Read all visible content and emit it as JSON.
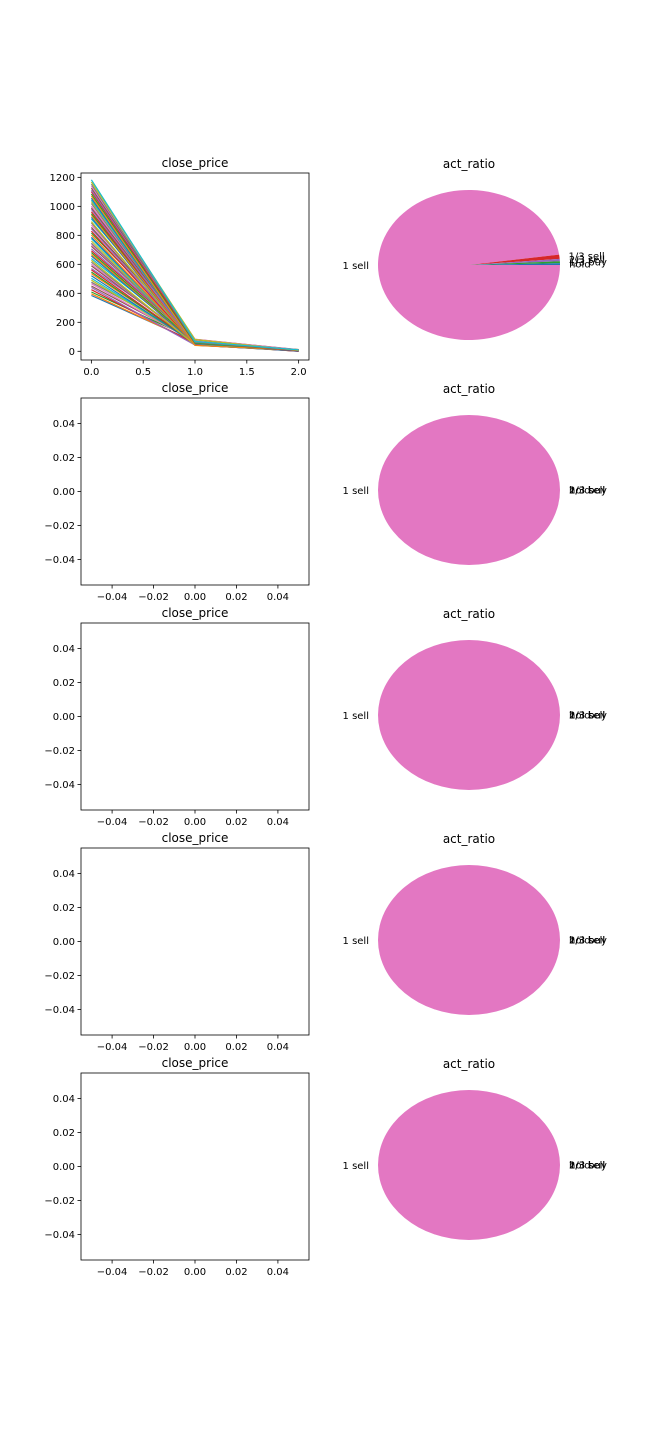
{
  "figure": {
    "rows": 5
  },
  "chart_data": [
    {
      "type": "line",
      "title": "close_price",
      "x": [
        0,
        1,
        2
      ],
      "xlim": [
        -0.1,
        2.1
      ],
      "ylim": [
        -60,
        1230
      ],
      "xticks": [
        "0.0",
        "0.5",
        "1.0",
        "1.5",
        "2.0"
      ],
      "xtick_values": [
        0,
        0.5,
        1,
        1.5,
        2
      ],
      "yticks": [
        "0",
        "200",
        "400",
        "600",
        "800",
        "1000",
        "1200"
      ],
      "ytick_values": [
        0,
        200,
        400,
        600,
        800,
        1000,
        1200
      ],
      "series_summary": {
        "count": 60,
        "start_range": [
          385,
          1180
        ],
        "mid_range": [
          40,
          85
        ],
        "end_range": [
          0,
          12
        ]
      },
      "colors": [
        "#1f77b4",
        "#ff7f0e",
        "#2ca02c",
        "#d62728",
        "#9467bd",
        "#8c564b",
        "#e377c2",
        "#7f7f7f",
        "#bcbd22",
        "#17becf"
      ]
    },
    {
      "type": "pie",
      "title": "act_ratio",
      "slices": [
        {
          "label": "1 sell",
          "value": 0.978,
          "color": "#e377c2"
        },
        {
          "label": "1/3 sell",
          "value": 0.009,
          "color": "#d62728"
        },
        {
          "label": "2/3 sell",
          "value": 0.005,
          "color": "#9467bd"
        },
        {
          "label": "1/3 buy",
          "value": 0.004,
          "color": "#2ca02c"
        },
        {
          "label": "hold",
          "value": 0.004,
          "color": "#1f77b4"
        }
      ]
    },
    {
      "type": "line",
      "title": "close_price",
      "series": [],
      "xlim": [
        -0.055,
        0.055
      ],
      "ylim": [
        -0.055,
        0.055
      ],
      "xticks": [
        "−0.04",
        "−0.02",
        "0.00",
        "0.02",
        "0.04"
      ],
      "yticks": [
        "−0.04",
        "−0.02",
        "0.00",
        "0.02",
        "0.04"
      ],
      "tick_values": [
        -0.04,
        -0.02,
        0,
        0.02,
        0.04
      ]
    },
    {
      "type": "pie",
      "title": "act_ratio",
      "slices": [
        {
          "label": "1 sell",
          "value": 1,
          "color": "#e377c2"
        }
      ],
      "zero_labels": [
        "1/3 sell",
        "2/3 sell",
        "1/3 buy",
        "hold"
      ]
    },
    {
      "type": "line",
      "title": "close_price",
      "series": [],
      "xlim": [
        -0.055,
        0.055
      ],
      "ylim": [
        -0.055,
        0.055
      ],
      "xticks": [
        "−0.04",
        "−0.02",
        "0.00",
        "0.02",
        "0.04"
      ],
      "yticks": [
        "−0.04",
        "−0.02",
        "0.00",
        "0.02",
        "0.04"
      ],
      "tick_values": [
        -0.04,
        -0.02,
        0,
        0.02,
        0.04
      ]
    },
    {
      "type": "pie",
      "title": "act_ratio",
      "slices": [
        {
          "label": "1 sell",
          "value": 1,
          "color": "#e377c2"
        }
      ],
      "zero_labels": [
        "1/3 sell",
        "2/3 sell",
        "1/3 buy",
        "hold"
      ]
    },
    {
      "type": "line",
      "title": "close_price",
      "series": [],
      "xlim": [
        -0.055,
        0.055
      ],
      "ylim": [
        -0.055,
        0.055
      ],
      "xticks": [
        "−0.04",
        "−0.02",
        "0.00",
        "0.02",
        "0.04"
      ],
      "yticks": [
        "−0.04",
        "−0.02",
        "0.00",
        "0.02",
        "0.04"
      ],
      "tick_values": [
        -0.04,
        -0.02,
        0,
        0.02,
        0.04
      ]
    },
    {
      "type": "pie",
      "title": "act_ratio",
      "slices": [
        {
          "label": "1 sell",
          "value": 1,
          "color": "#e377c2"
        }
      ],
      "zero_labels": [
        "1/3 sell",
        "2/3 sell",
        "1/3 buy",
        "hold"
      ]
    },
    {
      "type": "line",
      "title": "close_price",
      "series": [],
      "xlim": [
        -0.055,
        0.055
      ],
      "ylim": [
        -0.055,
        0.055
      ],
      "xticks": [
        "−0.04",
        "−0.02",
        "0.00",
        "0.02",
        "0.04"
      ],
      "yticks": [
        "−0.04",
        "−0.02",
        "0.00",
        "0.02",
        "0.04"
      ],
      "tick_values": [
        -0.04,
        -0.02,
        0,
        0.02,
        0.04
      ]
    },
    {
      "type": "pie",
      "title": "act_ratio",
      "slices": [
        {
          "label": "1 sell",
          "value": 1,
          "color": "#e377c2"
        }
      ],
      "zero_labels": [
        "1/3 sell",
        "2/3 sell",
        "1/3 buy",
        "hold"
      ]
    }
  ]
}
